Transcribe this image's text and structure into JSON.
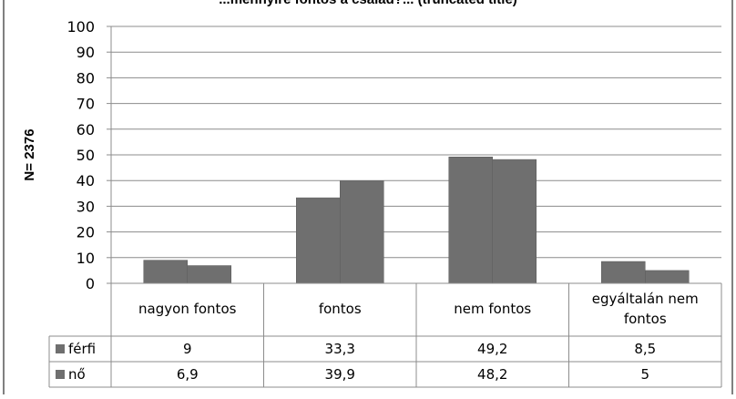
{
  "chart_data": {
    "type": "bar",
    "title": "...mennyire fontos a család?... (truncated title)",
    "ylabel": "N= 2376",
    "xlabel": "",
    "ylim": [
      0,
      100
    ],
    "yticks": [
      0,
      10,
      20,
      30,
      40,
      50,
      60,
      70,
      80,
      90,
      100
    ],
    "grid": true,
    "categories": [
      "nagyon fontos",
      "fontos",
      "nem fontos",
      "egyáltalán nem fontos"
    ],
    "series": [
      {
        "name": "férfi",
        "values": [
          "9",
          "33,3",
          "49,2",
          "8,5"
        ],
        "numeric": [
          9,
          33.3,
          49.2,
          8.5
        ],
        "color": "#6f6f6f"
      },
      {
        "name": "nő",
        "values": [
          "6,9",
          "39,9",
          "48,2",
          "5"
        ],
        "numeric": [
          6.9,
          39.9,
          48.2,
          5
        ],
        "color": "#6f6f6f"
      }
    ],
    "legend": "table-left"
  }
}
